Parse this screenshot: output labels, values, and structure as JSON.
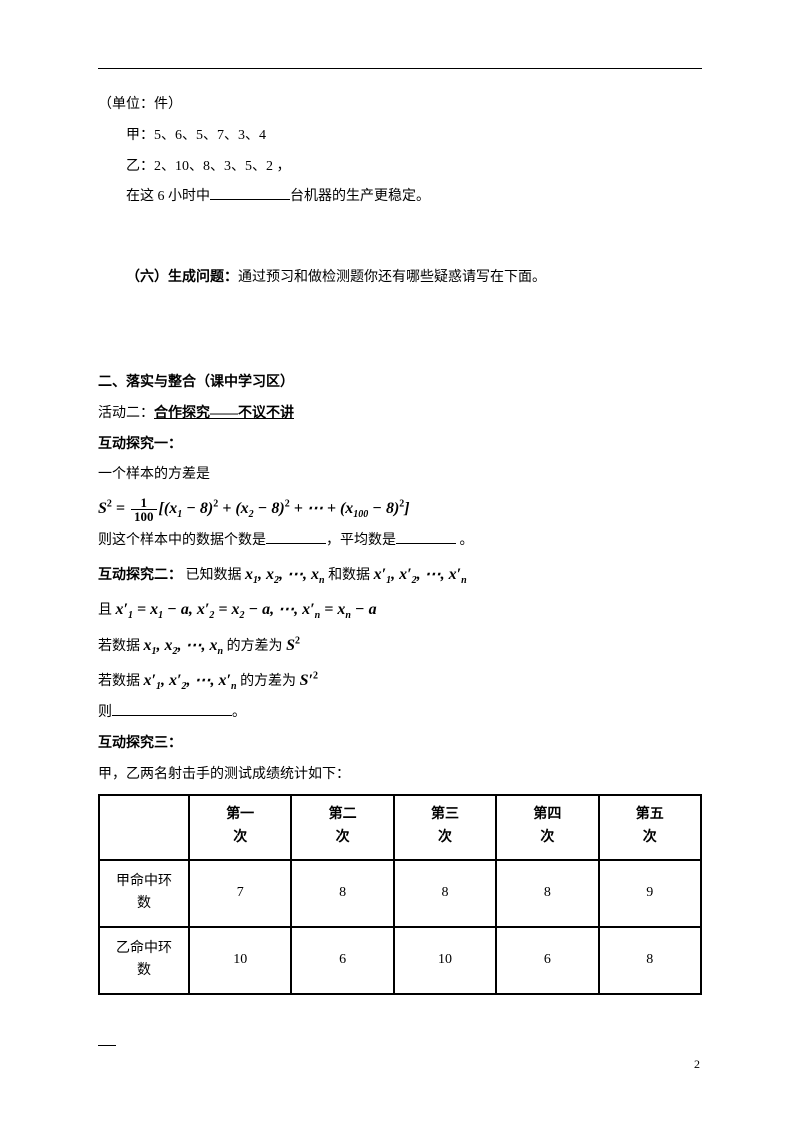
{
  "intro": {
    "unit": "（单位：件）",
    "jia": "甲：5、6、5、7、3、4",
    "yi": "乙：2、10、8、3、5、2 ，",
    "q_pre": "在这 6 小时中",
    "q_post": "台机器的生产更稳定。"
  },
  "section6": {
    "label": "（六）生成问题：",
    "text": "通过预习和做检测题你还有哪些疑惑请写在下面。"
  },
  "section2": {
    "heading": "二、落实与整合（课中学习区）",
    "act2_pre": "活动二：",
    "act2_link": "合作探究——不议不讲",
    "hudong1_title": "互动探究一：",
    "hudong1_line1": "一个样本的方差是",
    "hudong1_line3_a": "则这个样本中的数据个数是",
    "hudong1_line3_b": "，平均数是",
    "hudong1_line3_c": " 。",
    "hudong2_title": "互动探究二：",
    "hudong2_pre": "已知数据  ",
    "hudong2_mid": " 和数据 ",
    "hudong2_and": "且 ",
    "hudong2_if1": "若数据  ",
    "hudong2_if1_post": "  的方差为 ",
    "hudong2_if2": "若数据   ",
    "hudong2_if2_post": "  的方差为 ",
    "hudong2_then": "则",
    "hudong2_end": "。",
    "hudong3_title": "互动探究三：",
    "hudong3_text": "甲，乙两名射击手的测试成绩统计如下："
  },
  "formulas": {
    "variance": "S² = (1/100)[(x₁−8)²+(x₂−8)²+⋯+(x₁₀₀−8)²]",
    "xlist": "x₁, x₂, ⋯, xₙ",
    "xplist": "x′₁, x′₂, ⋯, x′ₙ",
    "defs": "x′₁ = x₁ − a, x′₂ = x₂ − a, ⋯, x′ₙ = xₙ − a",
    "s2": "S²",
    "sp2": "S′²"
  },
  "table": {
    "columns": [
      "",
      "第一次",
      "第二次",
      "第三次",
      "第四次",
      "第五次"
    ],
    "rows": [
      {
        "label": "甲命中环数",
        "vals": [
          "7",
          "8",
          "8",
          "8",
          "9"
        ]
      },
      {
        "label": "乙命中环数",
        "vals": [
          "10",
          "6",
          "10",
          "6",
          "8"
        ]
      }
    ],
    "col_header_top": [
      "第一",
      "第二",
      "第三",
      "第四",
      "第五"
    ],
    "col_header_bot": "次",
    "row1_top": "甲命中环",
    "row1_bot": "数",
    "row2_top": "乙命中环",
    "row2_bot": "数"
  },
  "page_number": "2"
}
